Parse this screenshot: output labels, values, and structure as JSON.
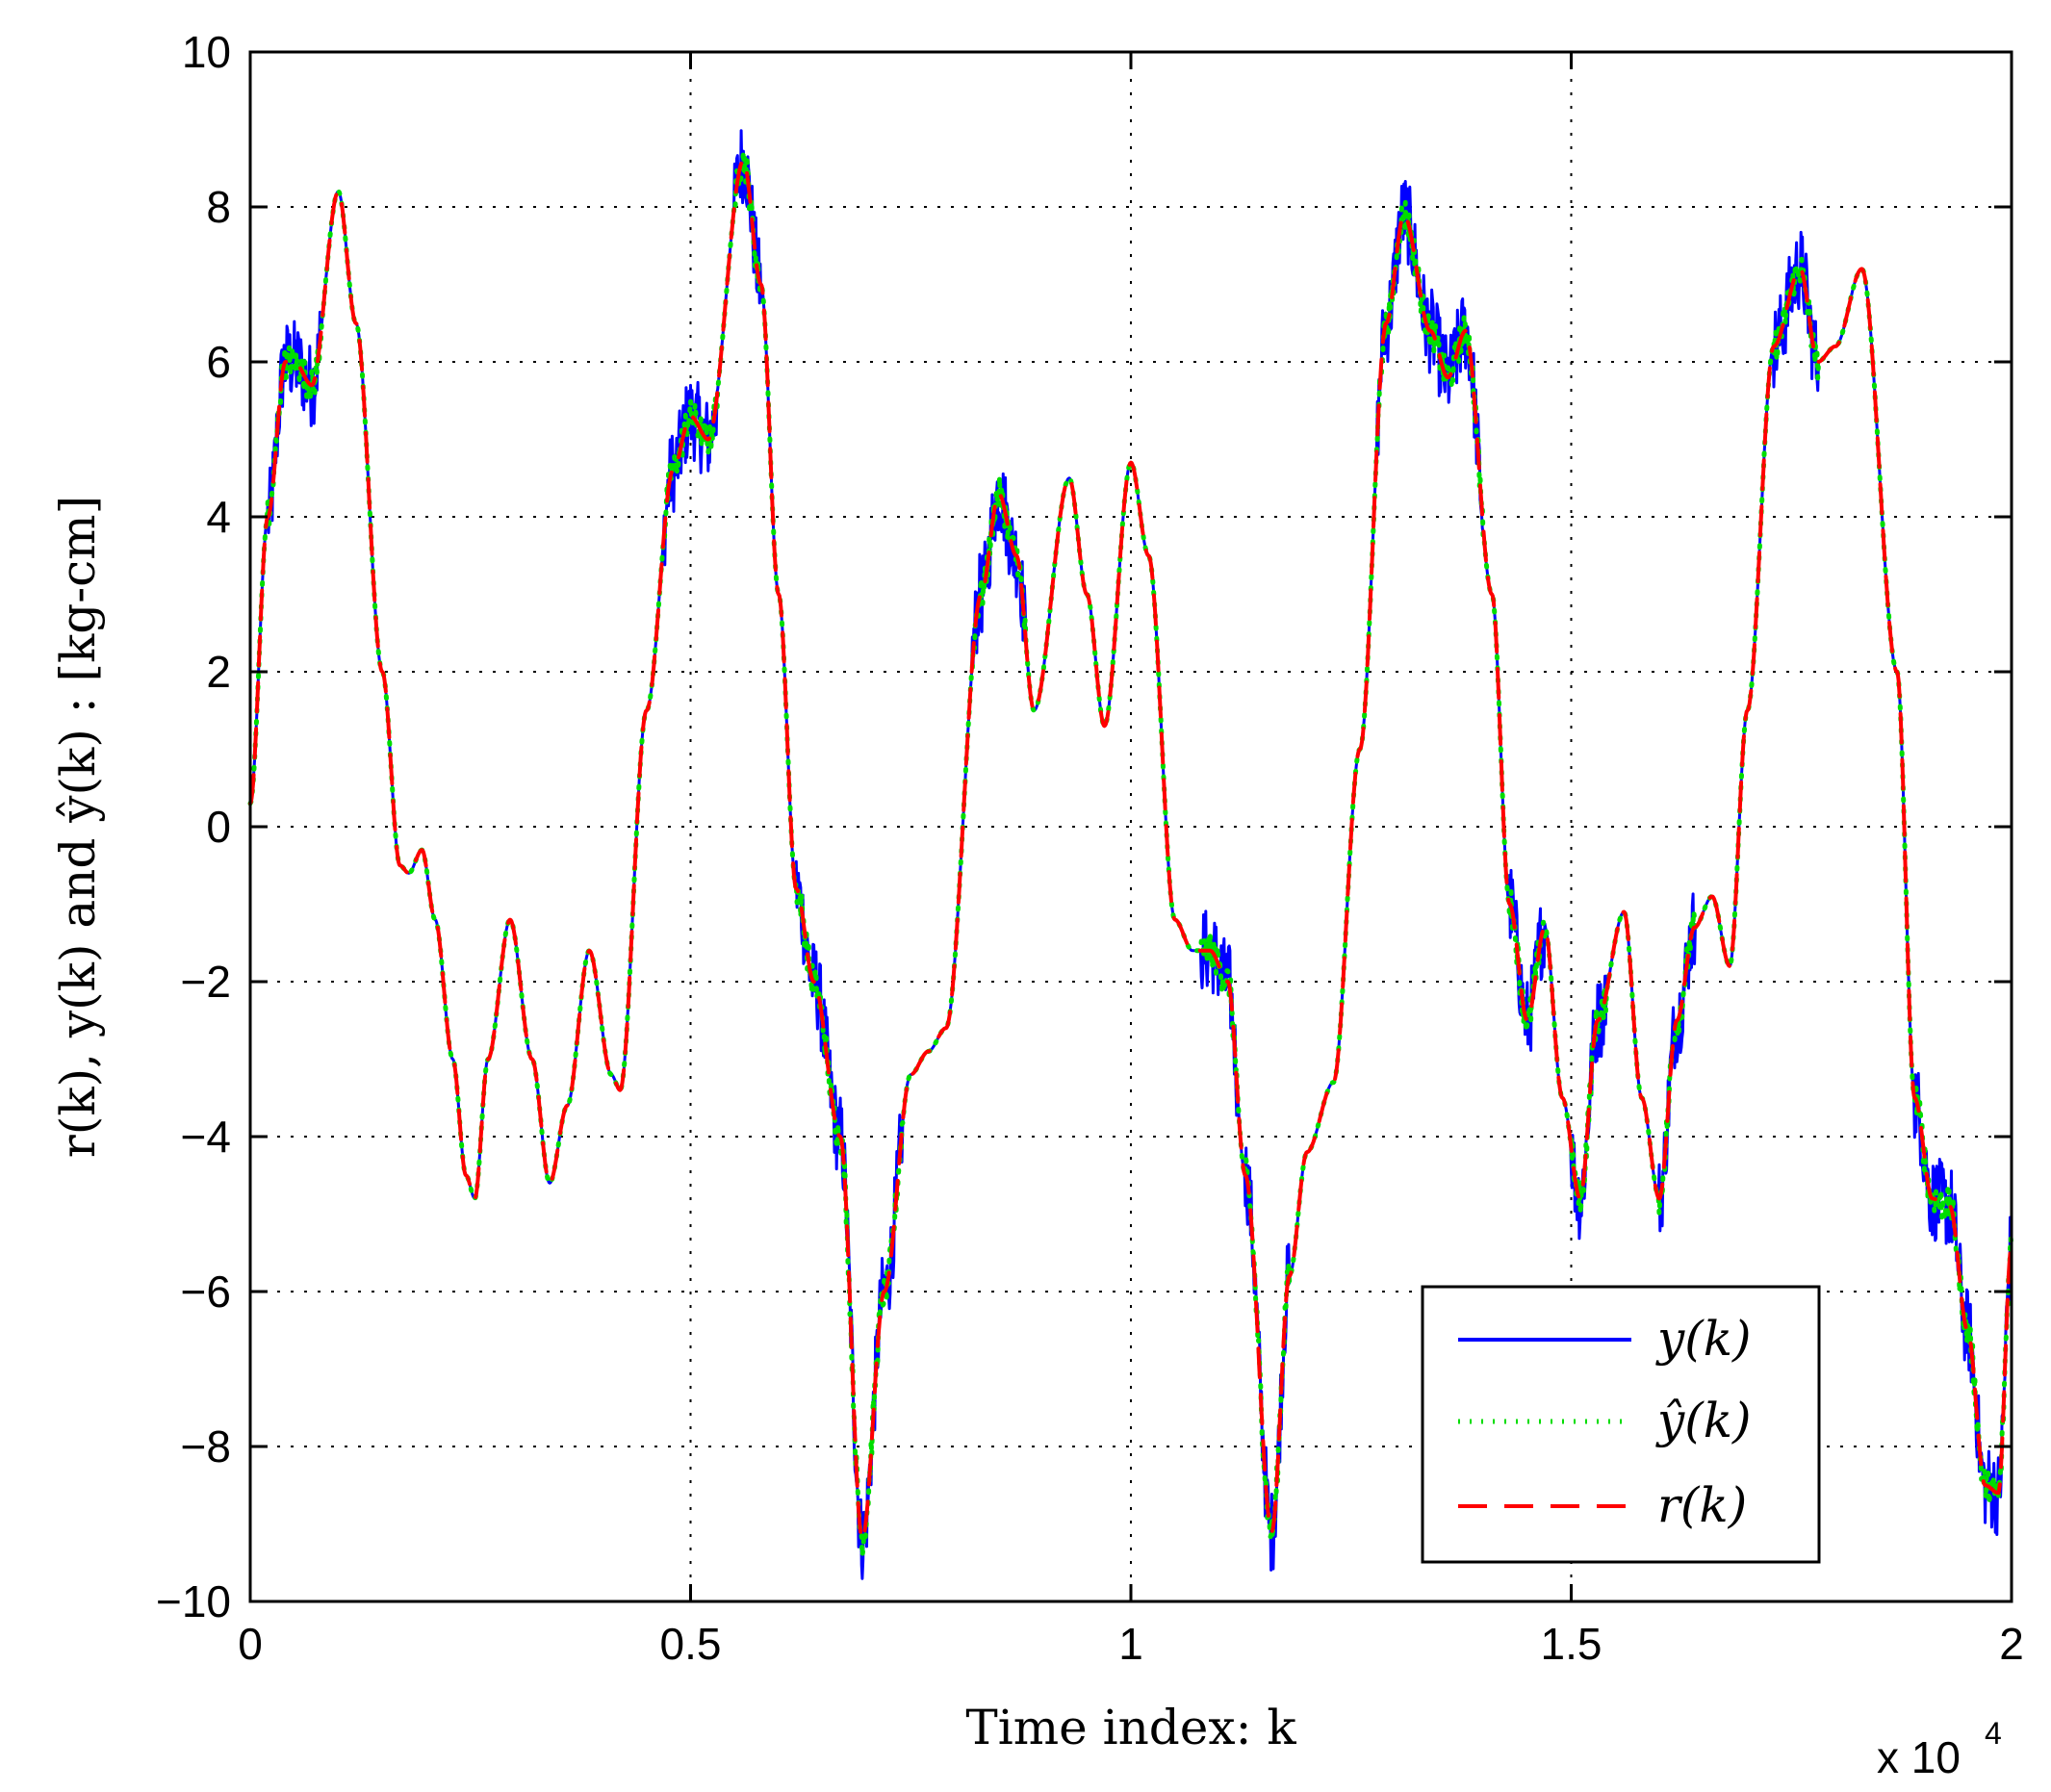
{
  "chart_data": {
    "type": "line",
    "xlabel": "Time index:  k",
    "ylabel": "r(k), y(k) and ŷ(k) :  [kg-cm]",
    "x_multiplier": "x 10",
    "x_multiplier_exp": "4",
    "xlim": [
      0,
      20000
    ],
    "ylim": [
      -10,
      10
    ],
    "xticks": [
      0,
      5000,
      10000,
      15000,
      20000
    ],
    "xtick_labels": [
      "0",
      "0.5",
      "1",
      "1.5",
      "2"
    ],
    "yticks": [
      -10,
      -8,
      -6,
      -4,
      -2,
      0,
      2,
      4,
      6,
      8,
      10
    ],
    "ytick_labels": [
      "−10",
      "−8",
      "−6",
      "−4",
      "−2",
      "0",
      "2",
      "4",
      "6",
      "8",
      "10"
    ],
    "grid": true,
    "legend_position": "bottom-right",
    "series": [
      {
        "name": "y(k)",
        "color": "#0000ff",
        "style": "solid",
        "noise": 0.55
      },
      {
        "name": "ŷ(k)",
        "color": "#00dd00",
        "style": "dotted",
        "noise": 0.22
      },
      {
        "name": "r(k)",
        "color": "#ff0000",
        "style": "dashed",
        "noise": 0
      }
    ],
    "reference_points": {
      "x": [
        0,
        200,
        400,
        500,
        700,
        1000,
        1200,
        1500,
        1700,
        1800,
        1950,
        2100,
        2300,
        2450,
        2550,
        2700,
        2950,
        3200,
        3400,
        3600,
        3850,
        4100,
        4200,
        4500,
        4800,
        5000,
        5200,
        5600,
        5800,
        6000,
        6200,
        6400,
        6700,
        6950,
        7200,
        7500,
        7700,
        7900,
        8300,
        8500,
        8700,
        8900,
        9300,
        9500,
        9700,
        10000,
        10200,
        10500,
        10700,
        10900,
        11100,
        11300,
        11600,
        11800,
        12000,
        12300,
        12600,
        12900,
        13100,
        13400,
        13600,
        13800,
        14100,
        14300,
        14500,
        14700,
        14900,
        15100,
        15300,
        15600,
        15800,
        16000,
        16200,
        16400,
        16600,
        16800,
        17000,
        17300,
        17600,
        17800,
        18000,
        18300,
        18700,
        18900,
        19100,
        19300,
        19500,
        19700,
        19850,
        20000
      ],
      "y": [
        0.3,
        4.0,
        6.0,
        6.0,
        5.7,
        8.2,
        6.5,
        2.0,
        -0.5,
        -0.6,
        -0.3,
        -1.2,
        -3.0,
        -4.5,
        -4.8,
        -3.0,
        -1.2,
        -3.0,
        -4.6,
        -3.6,
        -1.6,
        -3.2,
        -3.4,
        1.5,
        4.6,
        5.3,
        5.0,
        8.6,
        7.0,
        3.0,
        -0.8,
        -2.0,
        -4.0,
        -9.2,
        -6.0,
        -3.2,
        -2.9,
        -2.6,
        3.0,
        4.3,
        3.5,
        1.5,
        4.5,
        3.0,
        1.3,
        4.7,
        3.5,
        -1.2,
        -1.6,
        -1.6,
        -2.0,
        -4.5,
        -9.1,
        -5.8,
        -4.2,
        -3.3,
        1.0,
        6.5,
        7.9,
        6.4,
        5.8,
        6.4,
        3.0,
        -1.0,
        -2.5,
        -1.3,
        -3.5,
        -4.8,
        -2.5,
        -1.1,
        -3.5,
        -4.8,
        -2.5,
        -1.3,
        -0.9,
        -1.8,
        1.5,
        6.2,
        7.2,
        6.0,
        6.2,
        7.2,
        2.0,
        -3.5,
        -4.8,
        -4.9,
        -6.5,
        -8.5,
        -8.6,
        -5.4
      ]
    },
    "noisy_ranges": [
      [
        200,
        800
      ],
      [
        4700,
        5300
      ],
      [
        5500,
        5800
      ],
      [
        6200,
        7400
      ],
      [
        8200,
        8800
      ],
      [
        10800,
        11200
      ],
      [
        11300,
        11800
      ],
      [
        12800,
        14000
      ],
      [
        14300,
        14700
      ],
      [
        15000,
        15400
      ],
      [
        16000,
        16400
      ],
      [
        17300,
        17800
      ],
      [
        18900,
        20000
      ]
    ]
  }
}
